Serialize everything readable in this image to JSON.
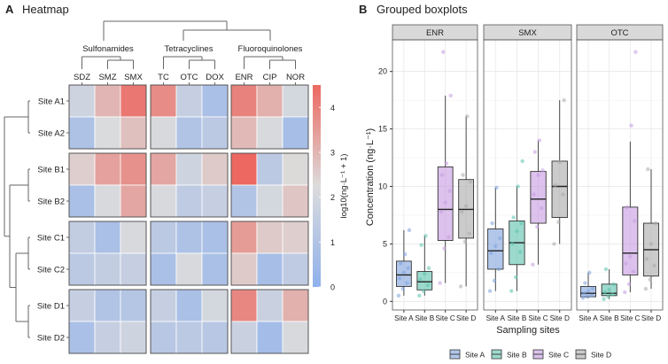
{
  "chart_data": [
    {
      "type": "heatmap",
      "panel_label": "A",
      "title": "Heatmap",
      "groups": [
        {
          "name": "Sulfonamides",
          "columns": [
            "SDZ",
            "SMZ",
            "SMX"
          ]
        },
        {
          "name": "Tetracyclines",
          "columns": [
            "TC",
            "OTC",
            "DOX"
          ]
        },
        {
          "name": "Fluoroquinolones",
          "columns": [
            "ENR",
            "CIP",
            "NOR"
          ]
        }
      ],
      "columns": [
        "SDZ",
        "SMZ",
        "SMX",
        "TC",
        "OTC",
        "DOX",
        "ENR",
        "CIP",
        "NOR"
      ],
      "rows": [
        "Site A1",
        "Site A2",
        "Site B1",
        "Site B2",
        "Site C1",
        "Site C2",
        "Site D1",
        "Site D2"
      ],
      "values": [
        [
          1.8,
          3.0,
          4.2,
          3.8,
          1.6,
          0.8,
          4.0,
          3.1,
          2.0
        ],
        [
          0.9,
          2.2,
          2.8,
          2.1,
          1.0,
          1.3,
          2.9,
          2.1,
          0.7
        ],
        [
          2.5,
          3.4,
          3.7,
          3.3,
          1.8,
          2.6,
          4.5,
          1.3,
          2.3
        ],
        [
          0.8,
          2.1,
          3.3,
          2.1,
          1.4,
          1.6,
          1.0,
          2.0,
          2.7
        ],
        [
          1.5,
          0.8,
          2.1,
          1.3,
          0.9,
          0.8,
          3.5,
          2.6,
          2.5
        ],
        [
          1.3,
          1.5,
          1.6,
          0.8,
          2.1,
          0.8,
          2.6,
          0.7,
          1.4
        ],
        [
          1.6,
          1.0,
          1.1,
          1.6,
          0.8,
          2.0,
          3.9,
          1.7,
          3.1
        ],
        [
          0.8,
          1.6,
          1.8,
          1.2,
          1.3,
          1.2,
          1.7,
          0.6,
          2.1
        ]
      ],
      "colorbar": {
        "label": "log10(ng·L⁻¹ + 1)",
        "ticks": [
          0,
          1,
          2,
          3,
          4
        ],
        "range": [
          0,
          4.5
        ]
      },
      "colors": {
        "low": "#8fb0ec",
        "mid": "#dcdcdc",
        "high": "#ec6860"
      }
    },
    {
      "type": "box",
      "panel_label": "B",
      "title": "Grouped boxplots",
      "xlabel": "Sampling sites",
      "ylabel": "Concentration (ng·L⁻¹)",
      "ylim": [
        -0.7,
        22.8
      ],
      "yticks": [
        0,
        5,
        10,
        15,
        20
      ],
      "grid": true,
      "legend": "bottom",
      "categories": [
        "Site A",
        "Site B",
        "Site C",
        "Site D"
      ],
      "colors": [
        "#7ea2dc",
        "#5cc2ad",
        "#c49ae0",
        "#a9a9a9"
      ],
      "facets": [
        {
          "name": "ENR",
          "boxes": [
            {
              "min": 0.5,
              "q1": 1.3,
              "median": 2.3,
              "q3": 3.5,
              "max": 6.2,
              "points": [
                0.5,
                1.1,
                1.6,
                2.0,
                2.5,
                2.9,
                3.3,
                4.1,
                6.2
              ]
            },
            {
              "min": 0.5,
              "q1": 1.0,
              "median": 1.7,
              "q3": 2.6,
              "max": 5.7,
              "points": [
                0.5,
                0.9,
                1.4,
                1.9,
                2.4,
                2.9,
                4.9,
                5.7
              ]
            },
            {
              "min": 1.6,
              "q1": 5.3,
              "median": 8.0,
              "q3": 11.7,
              "max": 17.9,
              "points": [
                1.6,
                4.6,
                5.6,
                7.8,
                8.6,
                9.6,
                11.0,
                12.0,
                17.9,
                21.7
              ]
            },
            {
              "min": 1.3,
              "q1": 5.5,
              "median": 8.0,
              "q3": 10.6,
              "max": 16.1,
              "points": [
                1.3,
                5.2,
                5.9,
                7.8,
                8.3,
                10.4,
                11.0,
                16.1
              ]
            }
          ]
        },
        {
          "name": "SMX",
          "boxes": [
            {
              "min": 0.9,
              "q1": 2.8,
              "median": 4.4,
              "q3": 6.3,
              "max": 9.9,
              "points": [
                0.9,
                1.8,
                2.8,
                4.2,
                4.8,
                5.5,
                6.8,
                9.9
              ]
            },
            {
              "min": 0.9,
              "q1": 3.2,
              "median": 5.1,
              "q3": 7.0,
              "max": 10.0,
              "points": [
                0.9,
                2.1,
                4.3,
                5.0,
                6.1,
                6.8,
                7.3,
                10.0,
                12.2
              ]
            },
            {
              "min": 3.2,
              "q1": 6.8,
              "median": 8.9,
              "q3": 11.3,
              "max": 14.0,
              "points": [
                3.2,
                6.5,
                8.1,
                9.3,
                11.0,
                11.4,
                13.0,
                14.0
              ]
            },
            {
              "min": 5.0,
              "q1": 7.3,
              "median": 10.0,
              "q3": 12.2,
              "max": 17.5,
              "points": [
                5.0,
                6.9,
                9.3,
                10.1,
                12.1,
                17.5
              ]
            }
          ]
        },
        {
          "name": "OTC",
          "boxes": [
            {
              "min": 0.3,
              "q1": 0.4,
              "median": 0.7,
              "q3": 1.3,
              "max": 2.5,
              "points": [
                0.3,
                0.4,
                0.5,
                0.7,
                0.9,
                1.1,
                1.6,
                2.5
              ]
            },
            {
              "min": 0.2,
              "q1": 0.5,
              "median": 0.7,
              "q3": 1.5,
              "max": 2.8,
              "points": [
                0.2,
                0.4,
                0.6,
                0.8,
                1.0,
                1.5,
                2.8
              ]
            },
            {
              "min": 0.8,
              "q1": 2.3,
              "median": 4.2,
              "q3": 8.2,
              "max": 13.9,
              "points": [
                0.8,
                1.5,
                2.6,
                3.3,
                3.9,
                7.0,
                8.2,
                15.3,
                21.7
              ]
            },
            {
              "min": 1.1,
              "q1": 2.2,
              "median": 4.5,
              "q3": 6.8,
              "max": 11.5,
              "points": [
                1.1,
                1.9,
                3.1,
                3.7,
                5.0,
                6.8,
                11.5
              ]
            }
          ]
        }
      ]
    }
  ]
}
